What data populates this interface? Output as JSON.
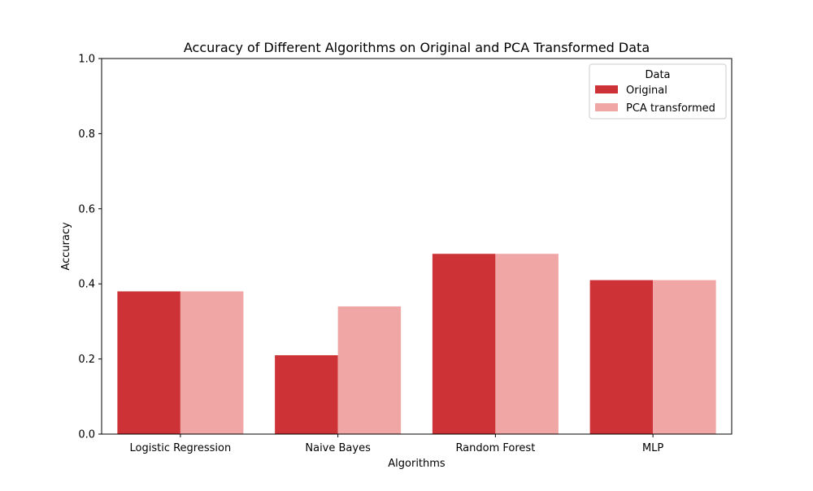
{
  "chart_data": {
    "type": "bar",
    "title": "Accuracy of Different Algorithms on Original and PCA Transformed Data",
    "xlabel": "Algorithms",
    "ylabel": "Accuracy",
    "categories": [
      "Logistic Regression",
      "Naive Bayes",
      "Random Forest",
      "MLP"
    ],
    "series": [
      {
        "name": "Original",
        "values": [
          0.38,
          0.21,
          0.48,
          0.41
        ],
        "color": "#cc3236"
      },
      {
        "name": "PCA transformed",
        "values": [
          0.38,
          0.34,
          0.48,
          0.41
        ],
        "color": "#f0a6a5"
      }
    ],
    "ylim": [
      0,
      1.0
    ],
    "yticks": [
      "0.0",
      "0.2",
      "0.4",
      "0.6",
      "0.8",
      "1.0"
    ],
    "grid": false,
    "legend": {
      "title": "Data",
      "placement": "top-right"
    }
  }
}
